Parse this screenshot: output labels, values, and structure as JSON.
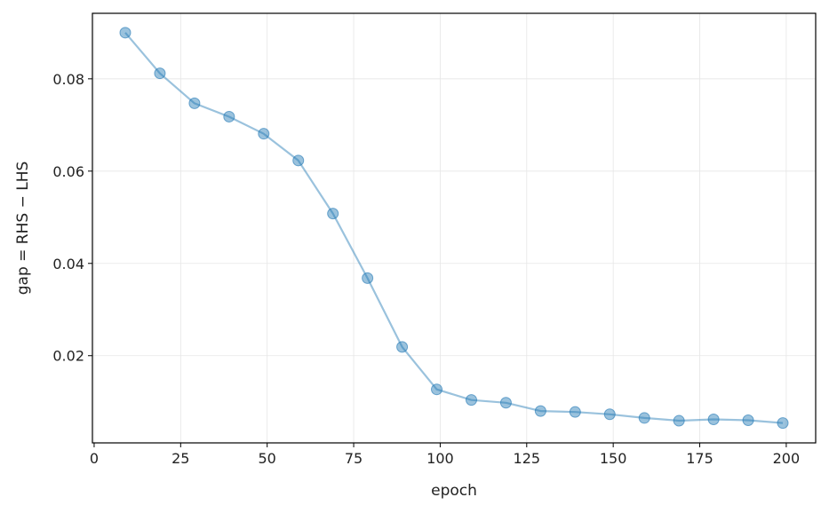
{
  "chart_data": {
    "type": "line",
    "title": "",
    "xlabel": "epoch",
    "ylabel": "gap = RHS − LHS",
    "xlim": [
      -0.5,
      208.5
    ],
    "ylim": [
      0.0011,
      0.0942
    ],
    "xticks": [
      0,
      25,
      50,
      75,
      100,
      125,
      150,
      175,
      200
    ],
    "yticks": [
      0.02,
      0.04,
      0.06,
      0.08
    ],
    "grid": true,
    "legend": "none",
    "line_color": "#1f77b4",
    "series": [
      {
        "x": [
          9,
          19,
          29,
          39,
          49,
          59,
          69,
          79,
          89,
          99,
          109,
          119,
          129,
          139,
          149,
          159,
          169,
          179,
          189,
          199
        ],
        "y": [
          0.09,
          0.0812,
          0.0747,
          0.0718,
          0.0681,
          0.0623,
          0.0508,
          0.0368,
          0.0219,
          0.0127,
          0.0104,
          0.0098,
          0.008,
          0.0078,
          0.0073,
          0.0065,
          0.0059,
          0.0062,
          0.006,
          0.0054
        ]
      }
    ]
  }
}
